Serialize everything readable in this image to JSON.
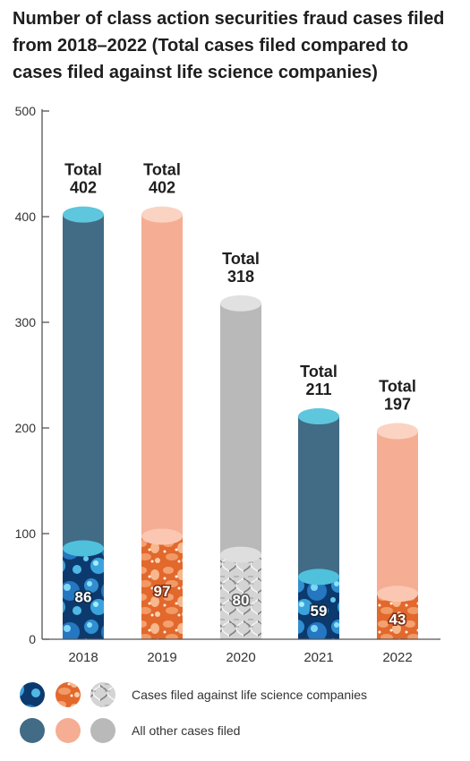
{
  "chart_data": {
    "type": "bar",
    "title": "Number of class action securities fraud cases filed\nfrom 2018–2022 (Total cases filed compared to\ncases filed against life science companies)",
    "categories": [
      "2018",
      "2019",
      "2020",
      "2021",
      "2022"
    ],
    "series": [
      {
        "name": "Cases filed against life science companies",
        "values": [
          86,
          97,
          80,
          59,
          43
        ]
      },
      {
        "name": "All other cases filed",
        "values": [
          316,
          305,
          238,
          152,
          154
        ]
      }
    ],
    "totals": [
      402,
      402,
      318,
      211,
      197
    ],
    "total_prefix": "Total",
    "ylim": [
      0,
      500
    ],
    "yticks": [
      0,
      100,
      200,
      300,
      400,
      500
    ],
    "grid": false,
    "legend_position": "bottom",
    "colors": {
      "other": [
        "#426b85",
        "#f5ae93",
        "#b9b9b9",
        "#426b85",
        "#f5ae93"
      ],
      "top_cap": [
        "#5ec6dd",
        "#fbd3c2",
        "#e1e1e1",
        "#5ec6dd",
        "#fbd3c2"
      ],
      "life_base": [
        "#0d3a6e",
        "#e2682c",
        "#d9d9d9",
        "#0d3a6e",
        "#e2682c"
      ],
      "life_accent": [
        "#4fc7ec",
        "#ffc09a",
        "#8a8a8a",
        "#4fc7ec",
        "#ffc09a"
      ],
      "life_cap": [
        "#4fc1dc",
        "#fbc7b2",
        "#dedede",
        "#4fc1dc",
        "#fbc7b2"
      ],
      "life_label_outline": [
        "#102a44",
        "#7a2e10",
        "#555555",
        "#102a44",
        "#7a2e10"
      ]
    },
    "textures": [
      "bubbles",
      "cells",
      "dna",
      "bubbles",
      "cells"
    ]
  }
}
